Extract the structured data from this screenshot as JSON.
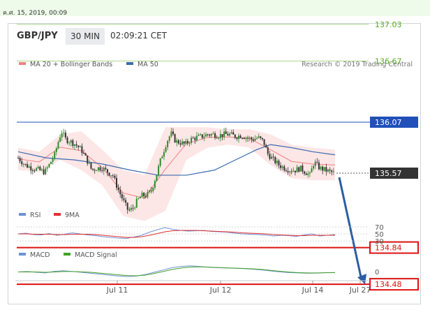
{
  "timestamp": "ค.ศ. 15, 2019, 00:09",
  "header": {
    "symbol": "GBP/JPY",
    "timeframe": "30 MIN",
    "time": "02:09:21 CET"
  },
  "main_legend": {
    "ma20": "MA 20 + Bollinger Bands",
    "ma50": "MA 50",
    "credit": "Research © 2019 Trading Central"
  },
  "colors": {
    "ma20": "#f08080",
    "bands": "#fde2e2",
    "ma50": "#3a6cb0",
    "resistance": "#55aa22",
    "strong_level": "#2050b8",
    "support": "#dd1111",
    "last_price": "#333333",
    "rsi": "#6d92d4",
    "rsi_ma": "#e03030",
    "macd": "#6d92d4",
    "macd_signal": "#44a028",
    "forecast_arrow": "#2b5da3"
  },
  "chart_data": [
    {
      "type": "candlestick",
      "x_ticks": [
        "Jul 11",
        "Jul 12",
        "Jul 14",
        "Jul 27"
      ],
      "y_tick_labels": [
        "137.03",
        "136.67",
        "136.07",
        "135.57",
        "134.84",
        "134.48"
      ],
      "ylim": [
        134.4,
        137.2
      ],
      "current_price": 135.57,
      "levels": [
        {
          "label": "137.03",
          "value": 137.03,
          "kind": "resistance"
        },
        {
          "label": "136.67",
          "value": 136.67,
          "kind": "resistance"
        },
        {
          "label": "136.07",
          "value": 136.07,
          "kind": "strong"
        },
        {
          "label": "135.57",
          "value": 135.57,
          "kind": "last"
        },
        {
          "label": "134.84",
          "value": 134.84,
          "kind": "support"
        },
        {
          "label": "134.48",
          "value": 134.48,
          "kind": "support"
        }
      ],
      "price_path": [
        [
          0,
          135.72
        ],
        [
          10,
          135.65
        ],
        [
          20,
          135.62
        ],
        [
          30,
          135.6
        ],
        [
          38,
          135.58
        ],
        [
          45,
          135.66
        ],
        [
          52,
          135.75
        ],
        [
          58,
          135.9
        ],
        [
          62,
          135.98
        ],
        [
          68,
          135.9
        ],
        [
          75,
          135.88
        ],
        [
          82,
          135.85
        ],
        [
          90,
          135.8
        ],
        [
          98,
          135.7
        ],
        [
          105,
          135.6
        ],
        [
          112,
          135.62
        ],
        [
          120,
          135.62
        ],
        [
          128,
          135.58
        ],
        [
          135,
          135.55
        ],
        [
          142,
          135.42
        ],
        [
          150,
          135.3
        ],
        [
          157,
          135.2
        ],
        [
          163,
          135.22
        ],
        [
          170,
          135.3
        ],
        [
          176,
          135.35
        ],
        [
          183,
          135.35
        ],
        [
          190,
          135.4
        ],
        [
          197,
          135.55
        ],
        [
          204,
          135.72
        ],
        [
          212,
          135.88
        ],
        [
          218,
          135.96
        ],
        [
          225,
          135.88
        ],
        [
          232,
          135.87
        ],
        [
          238,
          135.85
        ],
        [
          246,
          135.9
        ],
        [
          254,
          135.92
        ],
        [
          262,
          135.93
        ],
        [
          270,
          135.95
        ],
        [
          278,
          135.95
        ],
        [
          286,
          135.94
        ],
        [
          294,
          135.95
        ],
        [
          302,
          135.95
        ],
        [
          310,
          135.93
        ],
        [
          318,
          135.94
        ],
        [
          326,
          135.92
        ],
        [
          334,
          135.9
        ],
        [
          342,
          135.92
        ],
        [
          350,
          135.88
        ],
        [
          356,
          135.76
        ],
        [
          364,
          135.7
        ],
        [
          372,
          135.65
        ],
        [
          380,
          135.62
        ],
        [
          388,
          135.6
        ],
        [
          396,
          135.6
        ],
        [
          402,
          135.62
        ],
        [
          410,
          135.58
        ],
        [
          416,
          135.55
        ],
        [
          422,
          135.68
        ],
        [
          430,
          135.62
        ],
        [
          438,
          135.6
        ],
        [
          446,
          135.58
        ],
        [
          452,
          135.57
        ]
      ],
      "ma50_path": [
        [
          0,
          135.78
        ],
        [
          40,
          135.72
        ],
        [
          80,
          135.7
        ],
        [
          120,
          135.66
        ],
        [
          160,
          135.6
        ],
        [
          200,
          135.55
        ],
        [
          240,
          135.55
        ],
        [
          280,
          135.6
        ],
        [
          310,
          135.7
        ],
        [
          340,
          135.8
        ],
        [
          360,
          135.85
        ],
        [
          390,
          135.82
        ],
        [
          420,
          135.78
        ],
        [
          452,
          135.75
        ]
      ],
      "bands_upper": [
        [
          0,
          135.82
        ],
        [
          30,
          135.78
        ],
        [
          60,
          135.95
        ],
        [
          90,
          135.98
        ],
        [
          120,
          135.8
        ],
        [
          150,
          135.6
        ],
        [
          180,
          135.55
        ],
        [
          210,
          136.02
        ],
        [
          240,
          136.02
        ],
        [
          270,
          136.02
        ],
        [
          300,
          136.0
        ],
        [
          330,
          136.0
        ],
        [
          360,
          135.95
        ],
        [
          390,
          135.85
        ],
        [
          420,
          135.82
        ],
        [
          452,
          135.8
        ]
      ],
      "bands_lower": [
        [
          0,
          135.6
        ],
        [
          30,
          135.58
        ],
        [
          60,
          135.7
        ],
        [
          90,
          135.6
        ],
        [
          120,
          135.45
        ],
        [
          150,
          135.15
        ],
        [
          180,
          135.1
        ],
        [
          210,
          135.2
        ],
        [
          240,
          135.7
        ],
        [
          270,
          135.82
        ],
        [
          300,
          135.85
        ],
        [
          330,
          135.82
        ],
        [
          360,
          135.65
        ],
        [
          390,
          135.52
        ],
        [
          420,
          135.5
        ],
        [
          452,
          135.5
        ]
      ],
      "forecast_target": 134.48
    },
    {
      "type": "line",
      "legend": [
        "RSI",
        "9MA"
      ],
      "y_tick_labels": [
        "70",
        "50",
        "30"
      ],
      "ylim": [
        25,
        75
      ],
      "series": [
        {
          "name": "RSI",
          "values": [
            50,
            52,
            48,
            47,
            51,
            46,
            49,
            53,
            50,
            47,
            45,
            42,
            40,
            38,
            37,
            41,
            46,
            55,
            62,
            68,
            63,
            60,
            58,
            59,
            60,
            57,
            56,
            55,
            52,
            50,
            49,
            48,
            47,
            44,
            46,
            45,
            43,
            47,
            50,
            44,
            46,
            48
          ]
        },
        {
          "name": "9MA",
          "values": [
            50,
            50,
            49,
            49,
            49,
            48,
            48,
            49,
            49,
            49,
            48,
            46,
            44,
            42,
            40,
            40,
            42,
            46,
            51,
            56,
            59,
            60,
            60,
            60,
            59,
            58,
            57,
            56,
            55,
            53,
            52,
            51,
            50,
            48,
            47,
            46,
            45,
            45,
            46,
            46,
            46,
            46
          ]
        }
      ]
    },
    {
      "type": "line",
      "legend": [
        "MACD",
        "MACD Signal"
      ],
      "y_tick_labels": [
        "0"
      ],
      "ylim": [
        -0.6,
        0.6
      ],
      "series": [
        {
          "name": "MACD",
          "values": [
            0.02,
            0.05,
            0.0,
            -0.04,
            0.06,
            0.1,
            0.05,
            0.0,
            -0.06,
            -0.12,
            -0.18,
            -0.24,
            -0.28,
            -0.25,
            -0.15,
            0.0,
            0.15,
            0.3,
            0.38,
            0.42,
            0.38,
            0.33,
            0.3,
            0.28,
            0.26,
            0.24,
            0.2,
            0.15,
            0.08,
            0.02,
            -0.02,
            -0.04,
            -0.06,
            -0.05,
            -0.02,
            -0.01
          ]
        },
        {
          "name": "MACD Signal",
          "values": [
            0.02,
            0.03,
            0.02,
            0.0,
            0.02,
            0.05,
            0.05,
            0.03,
            0.0,
            -0.05,
            -0.1,
            -0.16,
            -0.21,
            -0.23,
            -0.19,
            -0.08,
            0.05,
            0.18,
            0.28,
            0.34,
            0.36,
            0.34,
            0.31,
            0.29,
            0.27,
            0.25,
            0.22,
            0.18,
            0.12,
            0.06,
            0.01,
            -0.02,
            -0.04,
            -0.04,
            -0.03,
            -0.02
          ]
        }
      ]
    }
  ]
}
